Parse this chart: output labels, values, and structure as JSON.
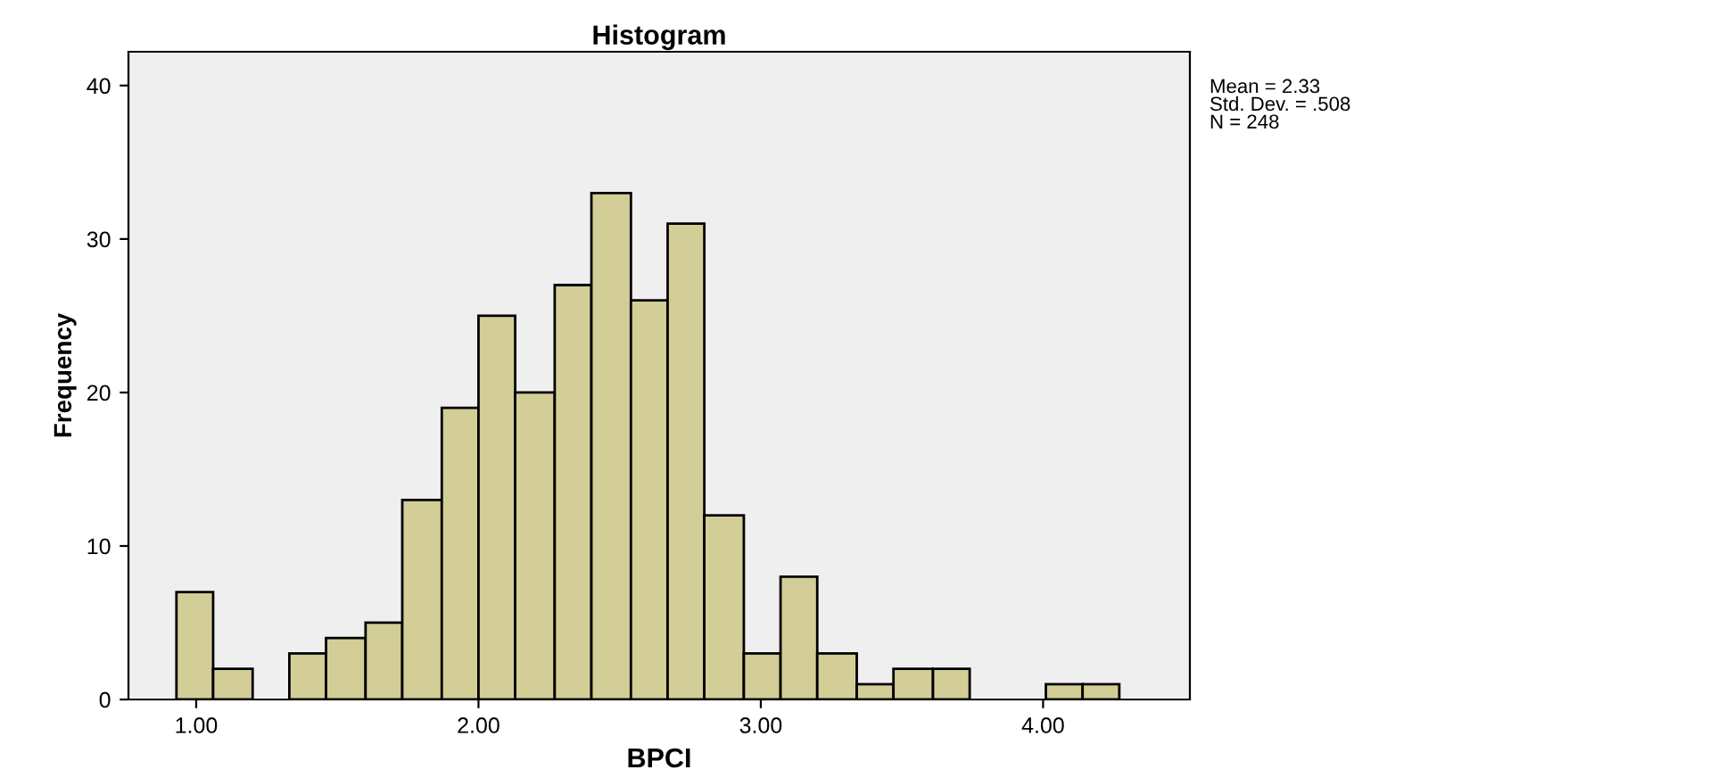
{
  "chart_data": {
    "type": "histogram",
    "title": "Histogram",
    "xlabel": "BPCI",
    "ylabel": "Frequency",
    "bins": [
      0.93,
      1.06,
      1.2,
      1.33,
      1.46,
      1.6,
      1.73,
      1.87,
      2.0,
      2.13,
      2.27,
      2.4,
      2.54,
      2.67,
      2.8,
      2.94,
      3.07,
      3.2,
      3.34,
      3.47,
      3.61,
      3.74,
      4.01,
      4.14,
      4.27
    ],
    "values": [
      7,
      2,
      0,
      3,
      4,
      5,
      13,
      19,
      25,
      20,
      27,
      33,
      26,
      31,
      12,
      3,
      8,
      3,
      1,
      2,
      2,
      0,
      1,
      1
    ],
    "color": "#d3ce97",
    "xlim": [
      0.76,
      4.52
    ],
    "xticks": [
      {
        "value": 1,
        "label": "1.00"
      },
      {
        "value": 2,
        "label": "2.00"
      },
      {
        "value": 3,
        "label": "3.00"
      },
      {
        "value": 4,
        "label": "4.00"
      }
    ],
    "ylim": [
      0,
      42.2
    ],
    "yticks": [
      0,
      10,
      20,
      30,
      40
    ],
    "grid": false,
    "annotations": [
      "Mean = 2.33\nStd. Dev. = .508\nN = 248"
    ]
  }
}
